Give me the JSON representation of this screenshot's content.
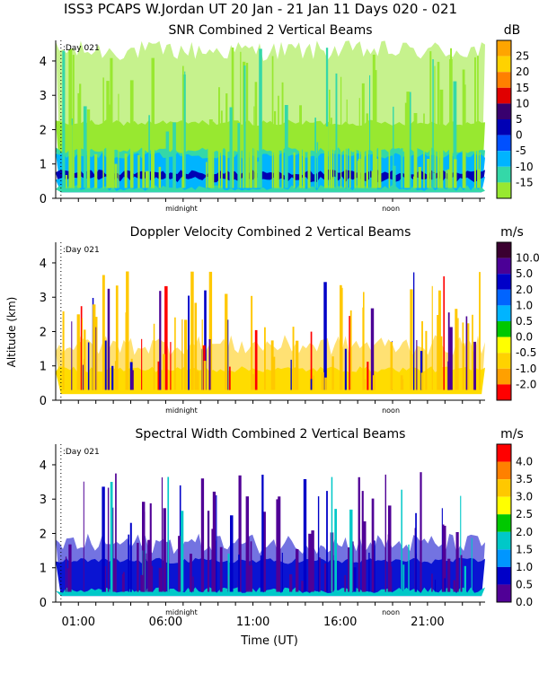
{
  "header": {
    "title": "ISS3 PCAPS W.Jordan UT  20 Jan - 21 Jan 11 Days 020 - 021"
  },
  "shared": {
    "ylabel": "Altitude (km)",
    "xlabel": "Time (UT)",
    "day_marker": ":Day 021",
    "x_label_midnight": "midnight",
    "x_label_noon": "noon",
    "xlim_hours": [
      -0.3,
      24.3
    ],
    "midnight_hour": 6.9,
    "noon_hour": 18.9,
    "x_ticks": [
      {
        "label": "01:00",
        "hour": 1
      },
      {
        "label": "06:00",
        "hour": 6
      },
      {
        "label": "11:00",
        "hour": 11
      },
      {
        "label": "16:00",
        "hour": 16
      },
      {
        "label": "21:00",
        "hour": 21
      }
    ],
    "ylim_km": [
      0,
      4.6
    ],
    "y_ticks": [
      "0",
      "1",
      "2",
      "3",
      "4"
    ]
  },
  "chart_data": [
    {
      "type": "heatmap",
      "title": "SNR Combined 2 Vertical Beams",
      "unit": "dB",
      "colorbar_labels": [
        "25",
        "20",
        "15",
        "10",
        "5",
        "0",
        "-5",
        "-10",
        "-15"
      ],
      "colorbar_colors": [
        "#ffa500",
        "#ffd200",
        "#ff8000",
        "#e00000",
        "#38006e",
        "#0000b4",
        "#0050ff",
        "#00b4ff",
        "#34d8a8",
        "#98e830"
      ],
      "layers": [
        {
          "top_km": 4.3,
          "color": "#98e830",
          "desc": "sparse streaks up to 4.5 km"
        },
        {
          "top_km": 2.2,
          "color": "#98e830"
        },
        {
          "top_km": 1.4,
          "color": "#34d8a8"
        },
        {
          "top_km": 1.25,
          "color": "#00b4ff"
        },
        {
          "top_km": 0.75,
          "color": "#0000b4"
        },
        {
          "top_km": 0.55,
          "color": "#00b4ff"
        },
        {
          "top_km": 0.3,
          "color": "#34d8a8"
        }
      ]
    },
    {
      "type": "heatmap",
      "title": "Doppler Velocity Combined 2 Vertical Beams",
      "unit": "m/s",
      "colorbar_labels": [
        "10.0",
        "5.0",
        "2.0",
        "1.0",
        "0.5",
        "0.0",
        "-0.5",
        "-1.0",
        "-2.0"
      ],
      "colorbar_colors": [
        "#3a0030",
        "#4b0096",
        "#0000c8",
        "#0064ff",
        "#00b4ff",
        "#00c800",
        "#ffff00",
        "#ffd200",
        "#ffa000",
        "#ff0000"
      ],
      "layers": [
        {
          "top_km": 1.6,
          "color": "#ffc800"
        },
        {
          "top_km": 0.9,
          "color": "#ffdc00"
        }
      ]
    },
    {
      "type": "heatmap",
      "title": "Spectral Width Combined 2 Vertical Beams",
      "unit": "m/s",
      "colorbar_labels": [
        "4.0",
        "3.5",
        "3.0",
        "2.5",
        "2.0",
        "1.5",
        "1.0",
        "0.5",
        "0.0"
      ],
      "colorbar_colors": [
        "#ff0000",
        "#ff8000",
        "#ffc800",
        "#ffff00",
        "#00c800",
        "#00c8c8",
        "#0096ff",
        "#0000c8",
        "#500096"
      ],
      "layers": [
        {
          "top_km": 1.7,
          "color": "#0000c8"
        },
        {
          "top_km": 1.2,
          "color": "#0a14d2"
        },
        {
          "top_km": 0.35,
          "color": "#00c8c8"
        }
      ]
    }
  ]
}
